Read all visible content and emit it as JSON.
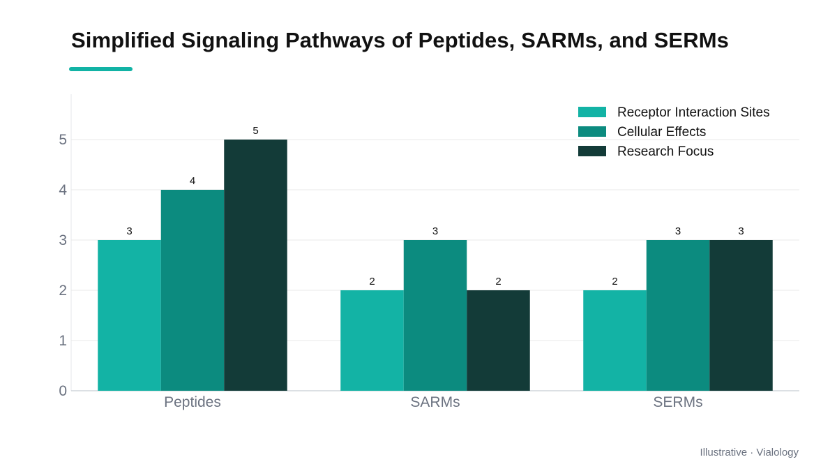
{
  "chart_data": {
    "type": "bar",
    "title": "Simplified Signaling Pathways of Peptides, SARMs, and SERMs",
    "categories": [
      "Peptides",
      "SARMs",
      "SERMs"
    ],
    "series": [
      {
        "name": "Receptor Interaction Sites",
        "values": [
          3,
          2,
          2
        ],
        "color": "#13b3a5"
      },
      {
        "name": "Cellular Effects",
        "values": [
          4,
          3,
          3
        ],
        "color": "#0c8b7f"
      },
      {
        "name": "Research Focus",
        "values": [
          5,
          2,
          3
        ],
        "color": "#133b38"
      }
    ],
    "yticks": [
      0,
      1,
      2,
      3,
      4,
      5
    ],
    "ylim": [
      0,
      5.9
    ],
    "xlabel": "",
    "ylabel": "",
    "grid": true,
    "legend": "top-right",
    "data_labels": true,
    "accent_color": "#12b3a5"
  },
  "footer": "Illustrative · Vialology"
}
